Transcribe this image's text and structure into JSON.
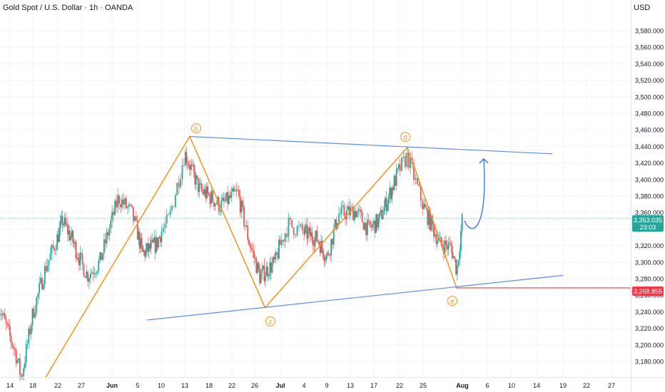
{
  "header": {
    "symbol_title": "Gold Spot / U.S. Dollar · 1h · OANDA",
    "currency": "USD"
  },
  "colors": {
    "up": "#26a69a",
    "down": "#ef5350",
    "pattern": "#f7931a",
    "trendline": "#5b8def",
    "projection": "#4a7fe0",
    "last_price_bg": "#26a69a",
    "support_bg": "#f23645"
  },
  "price_labels": {
    "last_price": "3,353.035",
    "countdown": "23:03",
    "support_price": "3,268.855"
  },
  "chart_data": {
    "type": "candlestick",
    "y_axis": {
      "ticks": [
        3580,
        3560,
        3540,
        3520,
        3500,
        3480,
        3460,
        3440,
        3420,
        3400,
        3380,
        3360,
        3340,
        3320,
        3300,
        3280,
        3260,
        3240,
        3220,
        3200,
        3180
      ],
      "tick_labels": [
        "3,580.000",
        "3,560.000",
        "3,540.000",
        "3,520.000",
        "3,500.000",
        "3,480.000",
        "3,460.000",
        "3,440.000",
        "3,420.000",
        "3,400.000",
        "3,380.000",
        "3,360.000",
        "3,340.000",
        "3,320.000",
        "3,300.000",
        "3,280.000",
        "3,260.000",
        "3,240.000",
        "3,220.000",
        "3,200.000",
        "3,180.000"
      ],
      "range": [
        3164,
        3612
      ]
    },
    "x_axis": {
      "labels": [
        "14",
        "18",
        "22",
        "27",
        "Jun",
        "5",
        "10",
        "13",
        "18",
        "22",
        "26",
        "Jul",
        "4",
        "9",
        "13",
        "17",
        "22",
        "25",
        "Aug",
        "6",
        "10",
        "14",
        "19",
        "22",
        "27"
      ],
      "bold_labels": [
        "Jun",
        "Jul",
        "Aug"
      ]
    },
    "wave_labels": [
      "b",
      "c",
      "d",
      "e"
    ],
    "wave_path": [
      {
        "x": "May 20",
        "y": 3160
      },
      {
        "x": "Jun 14",
        "y": 3452
      },
      {
        "x": "Jun 28",
        "y": 3245
      },
      {
        "x": "Jul 23",
        "y": 3439
      },
      {
        "x": "Jul 31",
        "y": 3268
      }
    ],
    "upper_trendline": [
      {
        "x": "Jun 14",
        "y": 3452
      },
      {
        "x": "Aug 17",
        "y": 3431
      }
    ],
    "lower_trendline": [
      {
        "x": "Jun 7",
        "y": 3230
      },
      {
        "x": "Aug 19",
        "y": 3284
      }
    ],
    "support_level": 3268.855,
    "last_price": 3353.035,
    "projection_target": 3425,
    "candles_approx": [
      {
        "x": "May 12",
        "y": 3248
      },
      {
        "x": "May 15",
        "y": 3190
      },
      {
        "x": "May 16",
        "y": 3160
      },
      {
        "x": "May 18",
        "y": 3238
      },
      {
        "x": "May 20",
        "y": 3292
      },
      {
        "x": "May 23",
        "y": 3350
      },
      {
        "x": "May 25",
        "y": 3328
      },
      {
        "x": "May 28",
        "y": 3284
      },
      {
        "x": "May 30",
        "y": 3300
      },
      {
        "x": "Jun 2",
        "y": 3378
      },
      {
        "x": "Jun 4",
        "y": 3360
      },
      {
        "x": "Jun 6",
        "y": 3310
      },
      {
        "x": "Jun 9",
        "y": 3322
      },
      {
        "x": "Jun 11",
        "y": 3352
      },
      {
        "x": "Jun 13",
        "y": 3432
      },
      {
        "x": "Jun 16",
        "y": 3388
      },
      {
        "x": "Jun 18",
        "y": 3380
      },
      {
        "x": "Jun 20",
        "y": 3368
      },
      {
        "x": "Jun 23",
        "y": 3384
      },
      {
        "x": "Jun 25",
        "y": 3325
      },
      {
        "x": "Jun 27",
        "y": 3282
      },
      {
        "x": "Jun 30",
        "y": 3300
      },
      {
        "x": "Jul 2",
        "y": 3345
      },
      {
        "x": "Jul 4",
        "y": 3336
      },
      {
        "x": "Jul 7",
        "y": 3328
      },
      {
        "x": "Jul 9",
        "y": 3305
      },
      {
        "x": "Jul 11",
        "y": 3358
      },
      {
        "x": "Jul 14",
        "y": 3362
      },
      {
        "x": "Jul 16",
        "y": 3340
      },
      {
        "x": "Jul 18",
        "y": 3350
      },
      {
        "x": "Jul 21",
        "y": 3397
      },
      {
        "x": "Jul 23",
        "y": 3428
      },
      {
        "x": "Jul 25",
        "y": 3368
      },
      {
        "x": "Jul 28",
        "y": 3322
      },
      {
        "x": "Jul 30",
        "y": 3318
      },
      {
        "x": "Jul 31",
        "y": 3290
      },
      {
        "x": "Aug 1",
        "y": 3353
      }
    ]
  }
}
